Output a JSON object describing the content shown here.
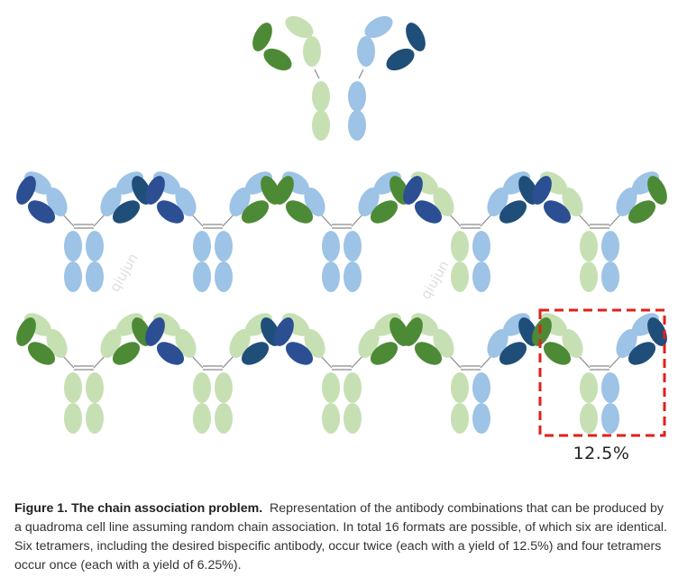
{
  "colors": {
    "dark_green": "#4d8a36",
    "light_green": "#c6e0b4",
    "dark_blue": "#2c4f93",
    "navy": "#1f4e79",
    "light_blue": "#9dc3e6",
    "highlight_red": "#e0201b"
  },
  "parents": [
    {
      "type": "half",
      "heavy": "light_green",
      "light": "dark_green",
      "side": "left"
    },
    {
      "type": "half",
      "heavy": "light_blue",
      "light": "navy",
      "side": "right"
    }
  ],
  "grid": [
    [
      {
        "heavy": [
          "light_blue",
          "light_blue"
        ],
        "light": [
          "dark_blue",
          "navy"
        ]
      },
      {
        "heavy": [
          "light_blue",
          "light_blue"
        ],
        "light": [
          "dark_blue",
          "dark_green"
        ]
      },
      {
        "heavy": [
          "light_blue",
          "light_blue"
        ],
        "light": [
          "dark_green",
          "dark_green"
        ]
      },
      {
        "heavy": [
          "light_green",
          "light_blue"
        ],
        "light": [
          "dark_blue",
          "navy"
        ]
      },
      {
        "heavy": [
          "light_green",
          "light_blue"
        ],
        "light": [
          "dark_blue",
          "dark_green"
        ]
      }
    ],
    [
      {
        "heavy": [
          "light_green",
          "light_green"
        ],
        "light": [
          "dark_green",
          "dark_green"
        ]
      },
      {
        "heavy": [
          "light_green",
          "light_green"
        ],
        "light": [
          "dark_blue",
          "navy"
        ]
      },
      {
        "heavy": [
          "light_green",
          "light_green"
        ],
        "light": [
          "dark_blue",
          "dark_green"
        ]
      },
      {
        "heavy": [
          "light_green",
          "light_blue"
        ],
        "light": [
          "dark_green",
          "navy"
        ]
      },
      {
        "heavy": [
          "light_green",
          "light_blue"
        ],
        "light": [
          "dark_green",
          "navy"
        ],
        "highlighted": true
      }
    ]
  ],
  "highlight_label": "12.5%",
  "watermarks": [
    "qiujun",
    "qiujun"
  ],
  "caption": {
    "title": "Figure 1. The chain association problem.",
    "text": "Representation of the antibody combinations that can be produced by a quadroma cell line assuming random chain association. In total 16 formats are possible, of which six are identical. Six tetramers, including the desired bispecific antibody, occur twice (each with a yield of 12.5%) and four tetramers occur once (each with a yield of 6.25%)."
  }
}
